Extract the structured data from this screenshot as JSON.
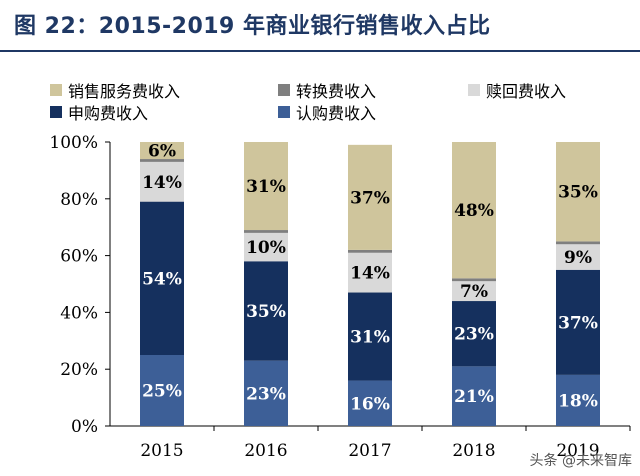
{
  "title": "图 22：2015-2019 年商业银行销售收入占比",
  "watermark": "头条 @未来智库",
  "chart_data": {
    "type": "bar",
    "stacked": true,
    "percent": true,
    "categories": [
      "2015",
      "2016",
      "2017",
      "2018",
      "2019"
    ],
    "series": [
      {
        "name": "认购费收入",
        "color": "#3d5f97",
        "label_color": "#ffffff",
        "values": [
          25,
          23,
          16,
          21,
          18
        ]
      },
      {
        "name": "申购费收入",
        "color": "#15305e",
        "label_color": "#ffffff",
        "values": [
          54,
          35,
          31,
          23,
          37
        ]
      },
      {
        "name": "赎回费收入",
        "color": "#d9d9d9",
        "label_color": "#000000",
        "values": [
          14,
          10,
          14,
          7,
          9
        ]
      },
      {
        "name": "转换费收入",
        "color": "#7f7f7f",
        "label_color": "#000000",
        "values": [
          1,
          1,
          1,
          1,
          1
        ]
      },
      {
        "name": "销售服务费收入",
        "color": "#cfc59c",
        "label_color": "#000000",
        "values": [
          6,
          31,
          37,
          48,
          35
        ]
      }
    ],
    "labels_shown": [
      [
        "25%",
        "54%",
        "14%",
        "",
        "6%"
      ],
      [
        "23%",
        "35%",
        "10%",
        "",
        "31%"
      ],
      [
        "16%",
        "31%",
        "14%",
        "",
        "37%"
      ],
      [
        "21%",
        "23%",
        "7%",
        "",
        "48%"
      ],
      [
        "18%",
        "37%",
        "9%",
        "",
        "35%"
      ]
    ],
    "legend_order": [
      "销售服务费收入",
      "转换费收入",
      "赎回费收入",
      "申购费收入",
      "认购费收入"
    ],
    "yticks": [
      "0%",
      "20%",
      "40%",
      "60%",
      "80%",
      "100%"
    ],
    "ylim": [
      0,
      100
    ],
    "grid": false,
    "legend_position": "top"
  }
}
